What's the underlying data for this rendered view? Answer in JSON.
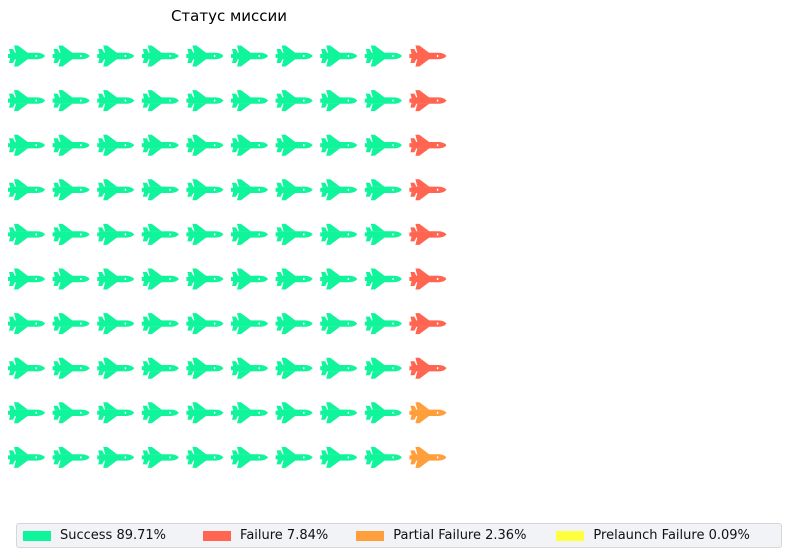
{
  "chart_data": {
    "type": "waffle",
    "title": "Статус миссии",
    "icon": "space-shuttle-icon",
    "rows": 10,
    "columns": 10,
    "series": [
      {
        "name": "Success",
        "percent": 89.71,
        "icons": 90,
        "color": "#10f59c",
        "legend_label": "Success 89.71%"
      },
      {
        "name": "Failure",
        "percent": 7.84,
        "icons": 8,
        "color": "#ff6550",
        "legend_label": "Failure 7.84%"
      },
      {
        "name": "Partial Failure",
        "percent": 2.36,
        "icons": 2,
        "color": "#ff9f3c",
        "legend_label": "Partial Failure 2.36%"
      },
      {
        "name": "Prelaunch Failure",
        "percent": 0.09,
        "icons": 0,
        "color": "#ffff40",
        "legend_label": "Prelaunch Failure 0.09%"
      }
    ],
    "fill_order": "column-major, top-to-bottom",
    "legend_position": "bottom"
  }
}
